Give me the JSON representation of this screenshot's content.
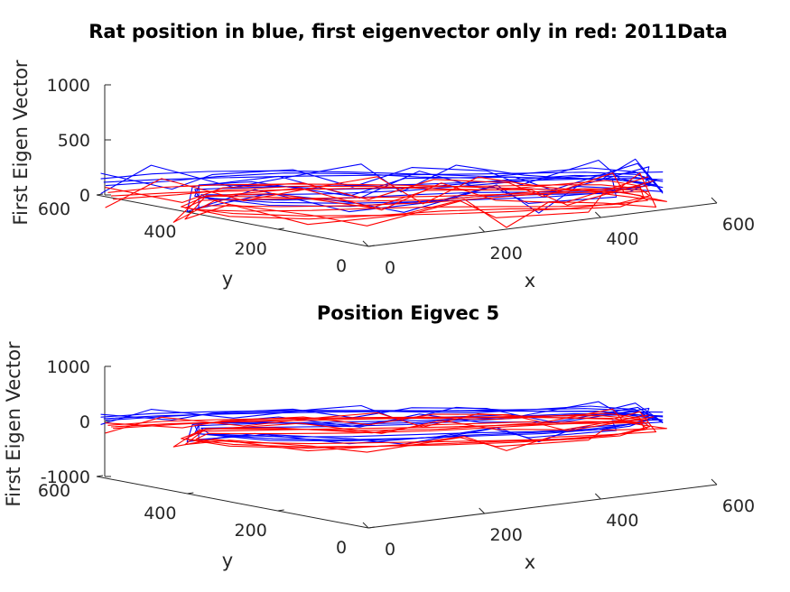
{
  "colors": {
    "position": "#0000ff",
    "eigenvector": "#ff0000",
    "axis": "#262626"
  },
  "chart_data": [
    {
      "type": "line3d",
      "title": "Rat position in blue, first eigenvector only in  red: 2011Data",
      "xlabel": "x",
      "ylabel": "y",
      "zlabel": "First Eigen Vector",
      "xlim": [
        0,
        600
      ],
      "ylim": [
        0,
        600
      ],
      "zlim": [
        0,
        1000
      ],
      "xticks": [
        0,
        200,
        400,
        600
      ],
      "yticks": [
        0,
        200,
        400,
        600
      ],
      "zticks": [
        0,
        500,
        1000
      ],
      "series": [
        {
          "color": "#0000ff",
          "z_level": 120,
          "x": [
            5,
            80,
            150,
            230,
            300,
            370,
            440,
            500,
            560,
            600,
            590,
            520,
            460,
            380,
            300,
            220,
            140,
            70,
            20,
            60,
            140,
            230,
            320,
            420,
            510,
            580,
            600
          ],
          "y": [
            590,
            560,
            520,
            470,
            420,
            370,
            320,
            280,
            240,
            180,
            120,
            90,
            80,
            100,
            140,
            180,
            230,
            300,
            400,
            460,
            420,
            360,
            300,
            250,
            200,
            150,
            120
          ]
        },
        {
          "color": "#ff0000",
          "z_level": 0,
          "x": [
            10,
            90,
            160,
            240,
            320,
            400,
            470,
            530,
            580,
            600,
            570,
            500,
            420,
            340,
            260,
            180,
            100,
            40,
            20,
            80,
            170,
            260,
            350,
            440,
            520,
            590
          ],
          "y": [
            580,
            550,
            510,
            460,
            410,
            360,
            310,
            270,
            230,
            170,
            110,
            85,
            90,
            120,
            160,
            210,
            270,
            350,
            430,
            470,
            410,
            350,
            290,
            240,
            190,
            140
          ]
        }
      ]
    },
    {
      "type": "line3d",
      "title": "Position Eigvec 5",
      "xlabel": "x",
      "ylabel": "y",
      "zlabel": "First Eigen Vector",
      "xlim": [
        0,
        600
      ],
      "ylim": [
        0,
        600
      ],
      "zlim": [
        -1000,
        1000
      ],
      "xticks": [
        0,
        200,
        400,
        600
      ],
      "yticks": [
        0,
        200,
        400,
        600
      ],
      "zticks": [
        -1000,
        0,
        1000
      ],
      "series": [
        {
          "color": "#0000ff",
          "z_level": 60,
          "x": [
            5,
            80,
            150,
            230,
            300,
            370,
            440,
            500,
            560,
            600,
            590,
            520,
            460,
            380,
            300,
            220,
            140,
            70,
            20,
            60,
            140,
            230,
            320,
            420,
            510,
            580,
            600
          ],
          "y": [
            590,
            560,
            520,
            470,
            420,
            370,
            320,
            280,
            240,
            180,
            120,
            90,
            80,
            100,
            140,
            180,
            230,
            300,
            400,
            460,
            420,
            360,
            300,
            250,
            200,
            150,
            120
          ]
        },
        {
          "color": "#ff0000",
          "z_level": -80,
          "x": [
            10,
            90,
            160,
            240,
            320,
            400,
            470,
            530,
            580,
            600,
            570,
            500,
            420,
            340,
            260,
            180,
            100,
            40,
            20,
            80,
            170,
            260,
            350,
            440,
            520,
            590
          ],
          "y": [
            580,
            550,
            510,
            460,
            410,
            360,
            310,
            270,
            230,
            170,
            110,
            85,
            90,
            120,
            160,
            210,
            270,
            350,
            430,
            470,
            410,
            350,
            290,
            240,
            190,
            140
          ]
        }
      ]
    }
  ]
}
